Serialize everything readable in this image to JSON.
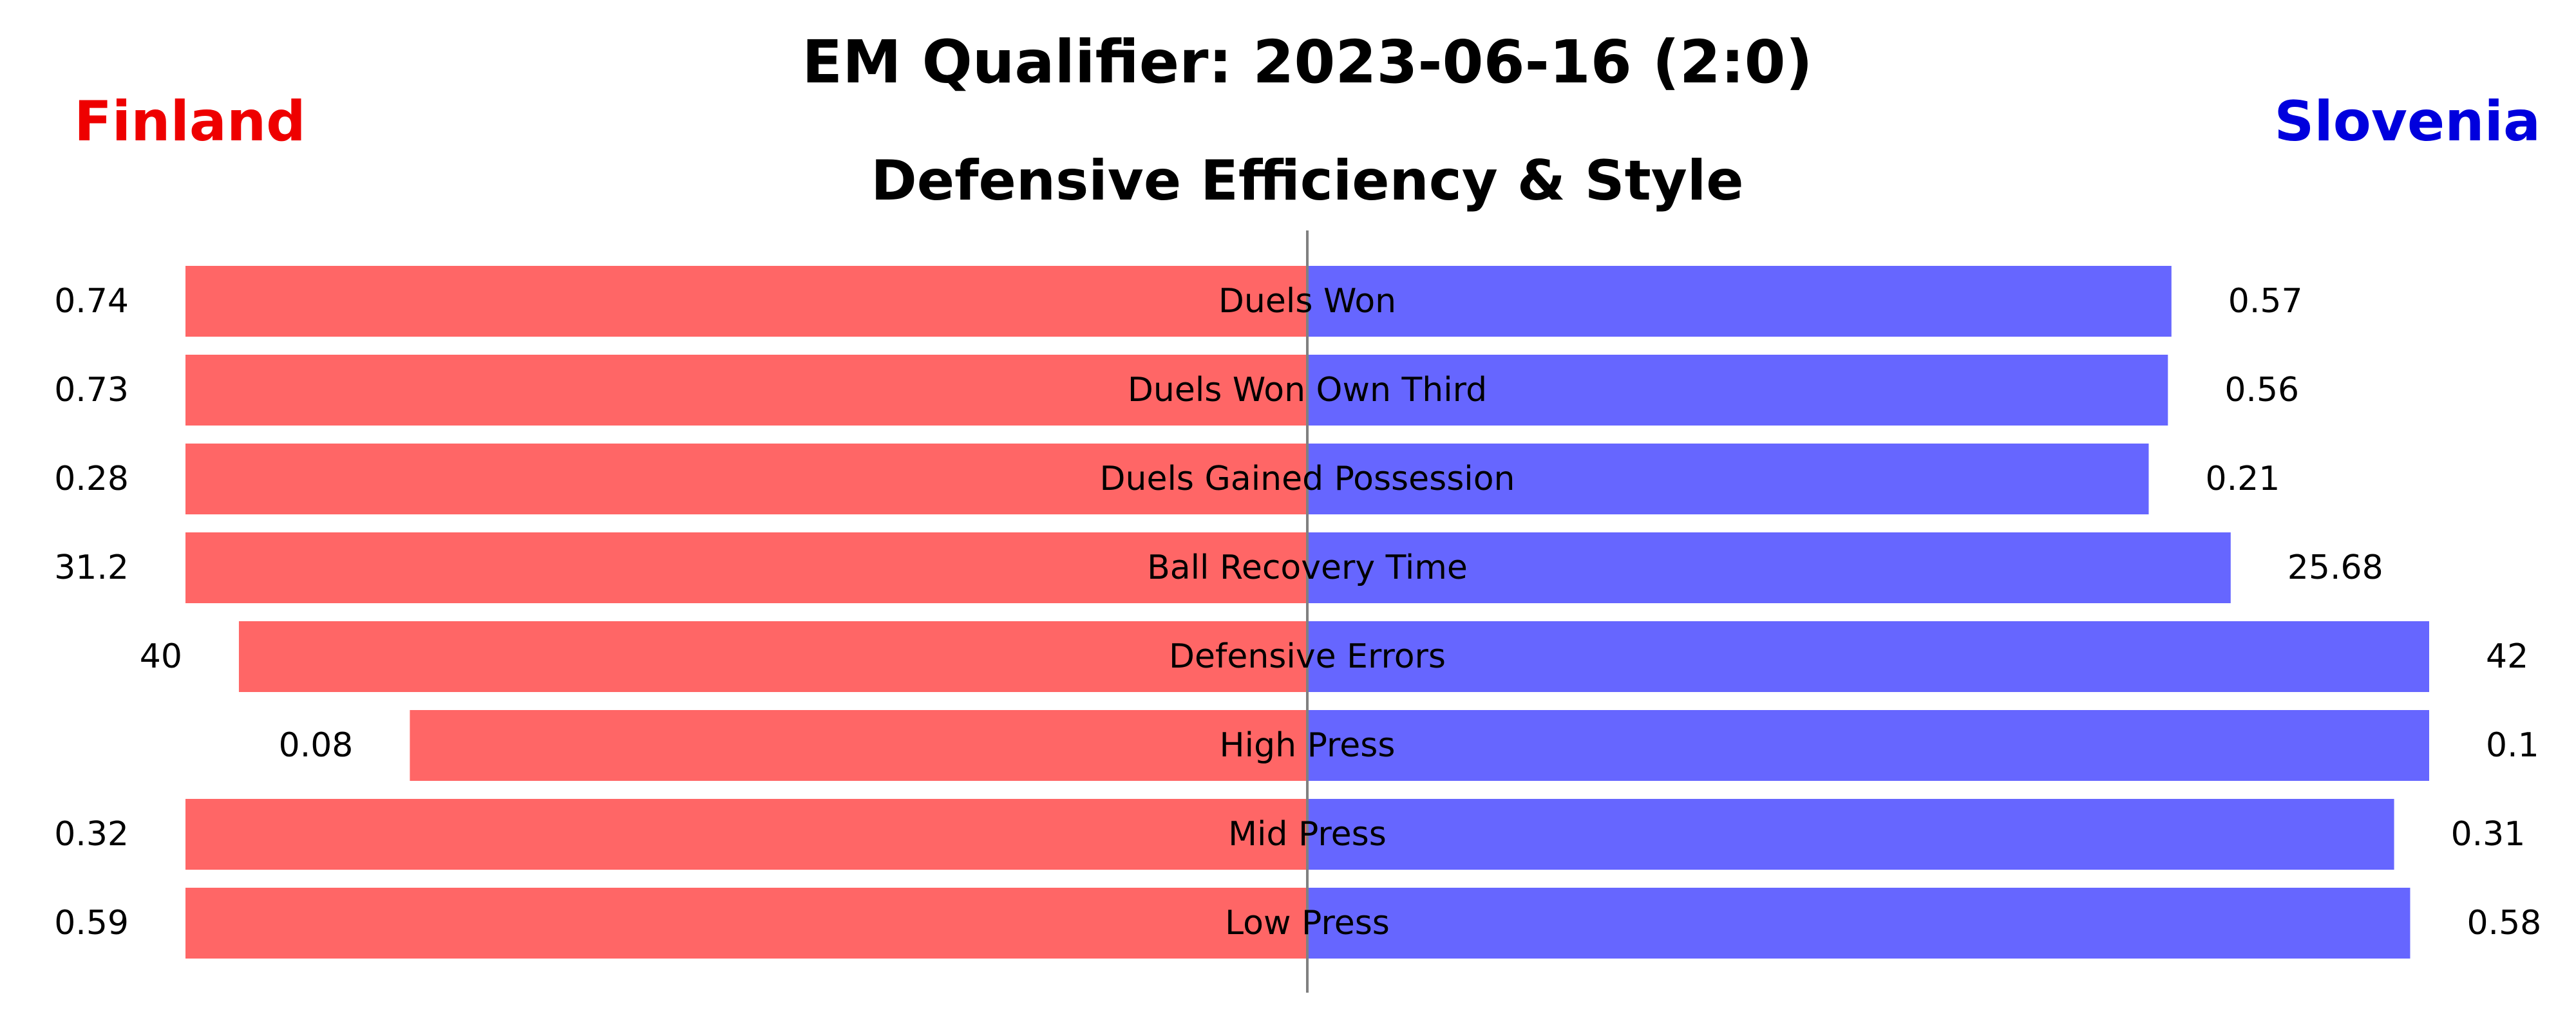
{
  "title": "EM Qualifier: 2023-06-16 (2:0)",
  "subtitle": "Defensive Efficiency & Style",
  "teams": {
    "left": {
      "name": "Finland",
      "color": "#ee0000",
      "bar_color": "#ff6666"
    },
    "right": {
      "name": "Slovenia",
      "color": "#0000dd",
      "bar_color": "#6666ff"
    }
  },
  "chart_data": {
    "type": "bar",
    "orientation": "horizontal-diverging",
    "categories": [
      "Duels Won",
      "Duels Won Own Third",
      "Duels Gained Possession",
      "Ball Recovery Time",
      "Defensive Errors",
      "High Press",
      "Mid Press",
      "Low Press"
    ],
    "series": [
      {
        "name": "Finland",
        "values": [
          0.74,
          0.73,
          0.28,
          31.2,
          40,
          0.08,
          0.32,
          0.59
        ],
        "labels": [
          "0.74",
          "0.73",
          "0.28",
          "31.2",
          "40",
          "0.08",
          "0.32",
          "0.59"
        ]
      },
      {
        "name": "Slovenia",
        "values": [
          0.57,
          0.56,
          0.21,
          25.68,
          42,
          0.1,
          0.31,
          0.58
        ],
        "labels": [
          "0.57",
          "0.56",
          "0.21",
          "25.68",
          "42",
          "0.1",
          "0.31",
          "0.58"
        ]
      }
    ],
    "scaling": "each category scaled to its own maximum across both teams",
    "grid": false,
    "center_line": true
  }
}
